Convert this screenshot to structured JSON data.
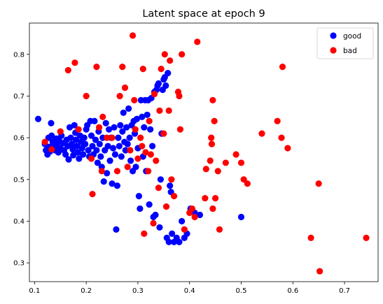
{
  "chart_data": {
    "type": "scatter",
    "title": "Latent space at epoch 9",
    "xlabel": "",
    "ylabel": "",
    "xlim": [
      0.09,
      0.765
    ],
    "ylim": [
      0.255,
      0.875
    ],
    "xticks": [
      0.1,
      0.2,
      0.3,
      0.4,
      0.5,
      0.6,
      0.7
    ],
    "xtick_labels": [
      "0.1",
      "0.2",
      "0.3",
      "0.4",
      "0.5",
      "0.6",
      "0.7"
    ],
    "yticks": [
      0.3,
      0.4,
      0.5,
      0.6,
      0.7,
      0.8
    ],
    "ytick_labels": [
      "0.3",
      "0.4",
      "0.5",
      "0.6",
      "0.7",
      "0.8"
    ],
    "grid": false,
    "legend_position": "top-right",
    "series": [
      {
        "name": "good",
        "color": "#0000ff",
        "points": [
          [
            0.107,
            0.645
          ],
          [
            0.12,
            0.585
          ],
          [
            0.122,
            0.57
          ],
          [
            0.125,
            0.56
          ],
          [
            0.127,
            0.6
          ],
          [
            0.128,
            0.578
          ],
          [
            0.13,
            0.567
          ],
          [
            0.132,
            0.635
          ],
          [
            0.133,
            0.605
          ],
          [
            0.135,
            0.59
          ],
          [
            0.137,
            0.58
          ],
          [
            0.14,
            0.57
          ],
          [
            0.142,
            0.598
          ],
          [
            0.143,
            0.583
          ],
          [
            0.146,
            0.565
          ],
          [
            0.148,
            0.592
          ],
          [
            0.15,
            0.575
          ],
          [
            0.152,
            0.605
          ],
          [
            0.155,
            0.587
          ],
          [
            0.157,
            0.57
          ],
          [
            0.16,
            0.56
          ],
          [
            0.162,
            0.595
          ],
          [
            0.164,
            0.58
          ],
          [
            0.166,
            0.548
          ],
          [
            0.168,
            0.625
          ],
          [
            0.17,
            0.6
          ],
          [
            0.172,
            0.585
          ],
          [
            0.174,
            0.572
          ],
          [
            0.175,
            0.558
          ],
          [
            0.177,
            0.63
          ],
          [
            0.179,
            0.612
          ],
          [
            0.18,
            0.595
          ],
          [
            0.182,
            0.58
          ],
          [
            0.184,
            0.565
          ],
          [
            0.186,
            0.55
          ],
          [
            0.188,
            0.605
          ],
          [
            0.19,
            0.59
          ],
          [
            0.192,
            0.575
          ],
          [
            0.194,
            0.56
          ],
          [
            0.196,
            0.6
          ],
          [
            0.198,
            0.585
          ],
          [
            0.2,
            0.62
          ],
          [
            0.202,
            0.63
          ],
          [
            0.204,
            0.57
          ],
          [
            0.206,
            0.555
          ],
          [
            0.208,
            0.64
          ],
          [
            0.21,
            0.605
          ],
          [
            0.212,
            0.58
          ],
          [
            0.214,
            0.56
          ],
          [
            0.216,
            0.64
          ],
          [
            0.218,
            0.595
          ],
          [
            0.22,
            0.57
          ],
          [
            0.222,
            0.54
          ],
          [
            0.224,
            0.615
          ],
          [
            0.226,
            0.585
          ],
          [
            0.228,
            0.555
          ],
          [
            0.23,
            0.53
          ],
          [
            0.232,
            0.6
          ],
          [
            0.234,
            0.495
          ],
          [
            0.236,
            0.57
          ],
          [
            0.238,
            0.635
          ],
          [
            0.24,
            0.515
          ],
          [
            0.242,
            0.58
          ],
          [
            0.244,
            0.62
          ],
          [
            0.246,
            0.545
          ],
          [
            0.248,
            0.6
          ],
          [
            0.25,
            0.49
          ],
          [
            0.252,
            0.575
          ],
          [
            0.254,
            0.625
          ],
          [
            0.256,
            0.56
          ],
          [
            0.258,
            0.38
          ],
          [
            0.26,
            0.485
          ],
          [
            0.262,
            0.6
          ],
          [
            0.264,
            0.58
          ],
          [
            0.266,
            0.63
          ],
          [
            0.268,
            0.555
          ],
          [
            0.27,
            0.615
          ],
          [
            0.272,
            0.66
          ],
          [
            0.274,
            0.59
          ],
          [
            0.276,
            0.57
          ],
          [
            0.278,
            0.625
          ],
          [
            0.28,
            0.585
          ],
          [
            0.282,
            0.67
          ],
          [
            0.284,
            0.6
          ],
          [
            0.286,
            0.545
          ],
          [
            0.288,
            0.63
          ],
          [
            0.29,
            0.52
          ],
          [
            0.292,
            0.64
          ],
          [
            0.294,
            0.61
          ],
          [
            0.296,
            0.53
          ],
          [
            0.298,
            0.645
          ],
          [
            0.3,
            0.575
          ],
          [
            0.302,
            0.46
          ],
          [
            0.304,
            0.43
          ],
          [
            0.306,
            0.69
          ],
          [
            0.308,
            0.65
          ],
          [
            0.31,
            0.555
          ],
          [
            0.312,
            0.625
          ],
          [
            0.314,
            0.69
          ],
          [
            0.316,
            0.52
          ],
          [
            0.318,
            0.655
          ],
          [
            0.32,
            0.69
          ],
          [
            0.322,
            0.44
          ],
          [
            0.324,
            0.62
          ],
          [
            0.326,
            0.695
          ],
          [
            0.328,
            0.58
          ],
          [
            0.33,
            0.41
          ],
          [
            0.332,
            0.71
          ],
          [
            0.334,
            0.415
          ],
          [
            0.336,
            0.715
          ],
          [
            0.338,
            0.725
          ],
          [
            0.34,
            0.73
          ],
          [
            0.342,
            0.385
          ],
          [
            0.344,
            0.5
          ],
          [
            0.346,
            0.61
          ],
          [
            0.348,
            0.715
          ],
          [
            0.35,
            0.74
          ],
          [
            0.352,
            0.745
          ],
          [
            0.354,
            0.725
          ],
          [
            0.356,
            0.36
          ],
          [
            0.358,
            0.755
          ],
          [
            0.36,
            0.35
          ],
          [
            0.362,
            0.485
          ],
          [
            0.364,
            0.47
          ],
          [
            0.366,
            0.37
          ],
          [
            0.37,
            0.35
          ],
          [
            0.375,
            0.36
          ],
          [
            0.38,
            0.35
          ],
          [
            0.385,
            0.4
          ],
          [
            0.39,
            0.36
          ],
          [
            0.395,
            0.37
          ],
          [
            0.402,
            0.43
          ],
          [
            0.41,
            0.42
          ],
          [
            0.42,
            0.415
          ],
          [
            0.5,
            0.41
          ]
        ]
      },
      {
        "name": "bad",
        "color": "#ff0000",
        "points": [
          [
            0.12,
            0.59
          ],
          [
            0.133,
            0.572
          ],
          [
            0.15,
            0.615
          ],
          [
            0.165,
            0.762
          ],
          [
            0.178,
            0.78
          ],
          [
            0.185,
            0.62
          ],
          [
            0.2,
            0.7
          ],
          [
            0.21,
            0.55
          ],
          [
            0.212,
            0.465
          ],
          [
            0.22,
            0.77
          ],
          [
            0.225,
            0.625
          ],
          [
            0.23,
            0.52
          ],
          [
            0.232,
            0.65
          ],
          [
            0.24,
            0.6
          ],
          [
            0.25,
            0.6
          ],
          [
            0.26,
            0.52
          ],
          [
            0.265,
            0.7
          ],
          [
            0.27,
            0.77
          ],
          [
            0.275,
            0.72
          ],
          [
            0.28,
            0.53
          ],
          [
            0.285,
            0.57
          ],
          [
            0.29,
            0.845
          ],
          [
            0.293,
            0.69
          ],
          [
            0.295,
            0.62
          ],
          [
            0.3,
            0.55
          ],
          [
            0.305,
            0.6
          ],
          [
            0.308,
            0.58
          ],
          [
            0.31,
            0.765
          ],
          [
            0.312,
            0.37
          ],
          [
            0.315,
            0.565
          ],
          [
            0.32,
            0.52
          ],
          [
            0.322,
            0.64
          ],
          [
            0.325,
            0.56
          ],
          [
            0.33,
            0.395
          ],
          [
            0.332,
            0.705
          ],
          [
            0.335,
            0.545
          ],
          [
            0.34,
            0.48
          ],
          [
            0.342,
            0.665
          ],
          [
            0.345,
            0.765
          ],
          [
            0.35,
            0.61
          ],
          [
            0.352,
            0.8
          ],
          [
            0.355,
            0.435
          ],
          [
            0.36,
            0.665
          ],
          [
            0.362,
            0.785
          ],
          [
            0.365,
            0.5
          ],
          [
            0.37,
            0.46
          ],
          [
            0.378,
            0.71
          ],
          [
            0.38,
            0.7
          ],
          [
            0.382,
            0.62
          ],
          [
            0.385,
            0.8
          ],
          [
            0.39,
            0.38
          ],
          [
            0.4,
            0.42
          ],
          [
            0.405,
            0.43
          ],
          [
            0.41,
            0.41
          ],
          [
            0.415,
            0.83
          ],
          [
            0.43,
            0.455
          ],
          [
            0.432,
            0.525
          ],
          [
            0.44,
            0.545
          ],
          [
            0.442,
            0.6
          ],
          [
            0.443,
            0.585
          ],
          [
            0.445,
            0.69
          ],
          [
            0.448,
            0.64
          ],
          [
            0.45,
            0.455
          ],
          [
            0.445,
            0.43
          ],
          [
            0.455,
            0.52
          ],
          [
            0.458,
            0.38
          ],
          [
            0.47,
            0.54
          ],
          [
            0.49,
            0.56
          ],
          [
            0.5,
            0.54
          ],
          [
            0.505,
            0.5
          ],
          [
            0.512,
            0.49
          ],
          [
            0.54,
            0.61
          ],
          [
            0.57,
            0.64
          ],
          [
            0.578,
            0.6
          ],
          [
            0.58,
            0.77
          ],
          [
            0.59,
            0.575
          ],
          [
            0.635,
            0.36
          ],
          [
            0.65,
            0.49
          ],
          [
            0.652,
            0.28
          ],
          [
            0.742,
            0.36
          ]
        ]
      }
    ]
  }
}
